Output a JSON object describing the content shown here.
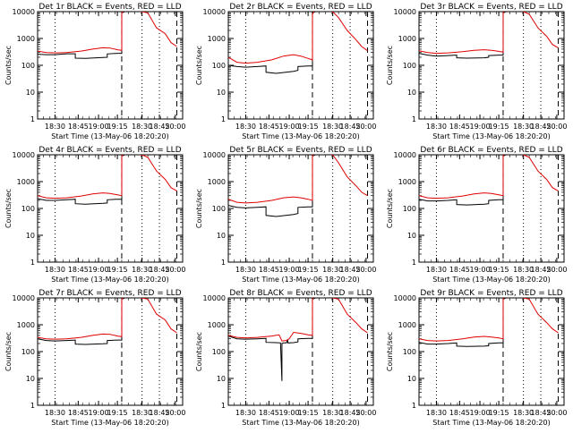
{
  "chart_data": [
    {
      "type": "line",
      "title": "Det 1r BLACK = Events, RED = LLD",
      "xlabel": "Start Time (13-May-06 18:20:20)",
      "ylabel": "Counts/sec",
      "ylim": [
        1,
        10000
      ],
      "yscale": "log",
      "x_ticks": [
        "18:30",
        "18:45",
        "19:00",
        "19:15",
        "18:30",
        "18:45",
        "20:00"
      ],
      "series": [
        {
          "name": "Events",
          "color": "#000000",
          "x": [
            0,
            0.06,
            0.12,
            0.2,
            0.26,
            0.26,
            0.33,
            0.45,
            0.48,
            0.48,
            0.55,
            0.58,
            0.58,
            0.6,
            0.62,
            0.62,
            0.63,
            0.63,
            0.65,
            0.7
          ],
          "y": [
            260,
            250,
            250,
            270,
            270,
            185,
            180,
            195,
            200,
            265,
            280,
            280,
            9000,
            10000,
            10000,
            null,
            null,
            null,
            null,
            null
          ]
        },
        {
          "name": "LLD",
          "color": "#e00000",
          "x": [
            0,
            0.06,
            0.12,
            0.2,
            0.3,
            0.38,
            0.45,
            0.5,
            0.55,
            0.58,
            0.58,
            0.6,
            0.64,
            0.68,
            0.72,
            0.76,
            0.82,
            0.88,
            0.92,
            0.96
          ],
          "y": [
            340,
            300,
            290,
            300,
            340,
            400,
            450,
            440,
            380,
            360,
            9000,
            12000,
            12000,
            11000,
            10000,
            9000,
            2500,
            1500,
            700,
            500
          ]
        }
      ]
    },
    {
      "type": "line",
      "title": "Det 2r BLACK = Events, RED = LLD",
      "xlabel": "Start Time (13-May-06 18:20:20)",
      "ylabel": "Counts/sec",
      "ylim": [
        1,
        10000
      ],
      "yscale": "log",
      "x_ticks": [
        "18:30",
        "18:45",
        "19:00",
        "19:15",
        "18:30",
        "18:45",
        "20:00"
      ],
      "series": [
        {
          "name": "Events",
          "color": "#000000",
          "x": [
            0,
            0.06,
            0.12,
            0.2,
            0.26,
            0.26,
            0.33,
            0.45,
            0.48,
            0.48,
            0.55,
            0.58,
            0.58,
            0.6,
            0.62
          ],
          "y": [
            100,
            90,
            85,
            90,
            95,
            55,
            50,
            60,
            65,
            90,
            95,
            95,
            9000,
            10000,
            10000
          ]
        },
        {
          "name": "LLD",
          "color": "#e00000",
          "x": [
            0,
            0.06,
            0.12,
            0.2,
            0.3,
            0.38,
            0.45,
            0.5,
            0.55,
            0.58,
            0.58,
            0.6,
            0.64,
            0.68,
            0.72,
            0.76,
            0.82,
            0.88,
            0.92,
            0.96
          ],
          "y": [
            200,
            130,
            120,
            130,
            160,
            220,
            250,
            220,
            180,
            160,
            8000,
            12000,
            12000,
            11000,
            10000,
            6000,
            2000,
            900,
            500,
            350
          ]
        }
      ]
    },
    {
      "type": "line",
      "title": "Det 3r BLACK = Events, RED = LLD",
      "xlabel": "Start Time (13-May-06 18:20:20)",
      "ylabel": "Counts/sec",
      "ylim": [
        1,
        10000
      ],
      "yscale": "log",
      "x_ticks": [
        "18:30",
        "18:45",
        "19:00",
        "19:15",
        "18:30",
        "18:45",
        "20:00"
      ],
      "series": [
        {
          "name": "Events",
          "color": "#000000",
          "x": [
            0,
            0.06,
            0.12,
            0.2,
            0.26,
            0.26,
            0.33,
            0.45,
            0.48,
            0.48,
            0.55,
            0.58,
            0.58,
            0.6,
            0.62
          ],
          "y": [
            280,
            240,
            220,
            230,
            240,
            190,
            185,
            190,
            200,
            230,
            240,
            240,
            9000,
            10000,
            10000
          ]
        },
        {
          "name": "LLD",
          "color": "#e00000",
          "x": [
            0,
            0.06,
            0.12,
            0.2,
            0.3,
            0.38,
            0.45,
            0.5,
            0.55,
            0.58,
            0.58,
            0.6,
            0.64,
            0.68,
            0.72,
            0.76,
            0.82,
            0.88,
            0.92,
            0.96
          ],
          "y": [
            350,
            300,
            280,
            290,
            320,
            360,
            380,
            360,
            330,
            310,
            9000,
            12000,
            12000,
            11000,
            10000,
            8000,
            2500,
            1200,
            600,
            450
          ]
        }
      ]
    },
    {
      "type": "line",
      "title": "Det 4r BLACK = Events, RED = LLD",
      "xlabel": "Start Time (13-May-06 18:20:20)",
      "ylabel": "Counts/sec",
      "ylim": [
        1,
        10000
      ],
      "yscale": "log",
      "x_ticks": [
        "18:30",
        "18:45",
        "19:00",
        "19:15",
        "18:30",
        "18:45",
        "20:00"
      ],
      "series": [
        {
          "name": "Events",
          "color": "#000000",
          "x": [
            0,
            0.06,
            0.12,
            0.2,
            0.26,
            0.26,
            0.33,
            0.45,
            0.48,
            0.48,
            0.55,
            0.58,
            0.58,
            0.6,
            0.62
          ],
          "y": [
            230,
            200,
            200,
            210,
            220,
            150,
            145,
            155,
            160,
            210,
            220,
            220,
            9000,
            10000,
            10000
          ]
        },
        {
          "name": "LLD",
          "color": "#e00000",
          "x": [
            0,
            0.06,
            0.12,
            0.2,
            0.3,
            0.38,
            0.45,
            0.5,
            0.55,
            0.58,
            0.58,
            0.6,
            0.64,
            0.68,
            0.72,
            0.76,
            0.82,
            0.88,
            0.92,
            0.96
          ],
          "y": [
            300,
            250,
            240,
            250,
            290,
            350,
            380,
            360,
            320,
            300,
            9000,
            12000,
            12000,
            11000,
            10000,
            8000,
            2500,
            1200,
            600,
            450
          ]
        }
      ]
    },
    {
      "type": "line",
      "title": "Det 5r BLACK = Events, RED = LLD",
      "xlabel": "Start Time (13-May-06 18:20:20)",
      "ylabel": "Counts/sec",
      "ylim": [
        1,
        10000
      ],
      "yscale": "log",
      "x_ticks": [
        "18:30",
        "18:45",
        "19:00",
        "19:15",
        "18:30",
        "18:45",
        "20:00"
      ],
      "series": [
        {
          "name": "Events",
          "color": "#000000",
          "x": [
            0,
            0.06,
            0.12,
            0.2,
            0.26,
            0.26,
            0.33,
            0.45,
            0.48,
            0.48,
            0.55,
            0.58,
            0.58,
            0.6,
            0.62
          ],
          "y": [
            130,
            110,
            105,
            110,
            115,
            55,
            50,
            60,
            65,
            110,
            115,
            115,
            9000,
            10000,
            10000
          ]
        },
        {
          "name": "LLD",
          "color": "#e00000",
          "x": [
            0,
            0.06,
            0.12,
            0.2,
            0.3,
            0.38,
            0.45,
            0.5,
            0.55,
            0.58,
            0.58,
            0.6,
            0.64,
            0.68,
            0.72,
            0.76,
            0.82,
            0.88,
            0.92,
            0.96
          ],
          "y": [
            220,
            170,
            160,
            170,
            200,
            250,
            270,
            250,
            220,
            200,
            9000,
            12000,
            12000,
            11000,
            10000,
            5000,
            1500,
            700,
            400,
            300
          ]
        }
      ]
    },
    {
      "type": "line",
      "title": "Det 6r BLACK = Events, RED = LLD",
      "xlabel": "Start Time (13-May-06 18:20:20)",
      "ylabel": "Counts/sec",
      "ylim": [
        1,
        10000
      ],
      "yscale": "log",
      "x_ticks": [
        "18:30",
        "18:45",
        "19:00",
        "19:15",
        "18:30",
        "18:45",
        "20:00"
      ],
      "series": [
        {
          "name": "Events",
          "color": "#000000",
          "x": [
            0,
            0.06,
            0.12,
            0.2,
            0.26,
            0.26,
            0.33,
            0.45,
            0.48,
            0.48,
            0.55,
            0.58,
            0.58,
            0.6,
            0.62
          ],
          "y": [
            220,
            190,
            190,
            200,
            210,
            140,
            135,
            145,
            150,
            200,
            210,
            210,
            9000,
            10000,
            10000
          ]
        },
        {
          "name": "LLD",
          "color": "#e00000",
          "x": [
            0,
            0.06,
            0.12,
            0.2,
            0.3,
            0.38,
            0.45,
            0.5,
            0.55,
            0.58,
            0.58,
            0.6,
            0.64,
            0.68,
            0.72,
            0.76,
            0.82,
            0.88,
            0.92,
            0.96
          ],
          "y": [
            300,
            250,
            240,
            250,
            290,
            350,
            380,
            360,
            320,
            300,
            9000,
            12000,
            12000,
            11000,
            10000,
            8000,
            2500,
            1200,
            600,
            450
          ]
        }
      ]
    },
    {
      "type": "line",
      "title": "Det 7r BLACK = Events, RED = LLD",
      "xlabel": "Start Time (13-May-06 18:20:20)",
      "ylabel": "Counts/sec",
      "ylim": [
        1,
        10000
      ],
      "yscale": "log",
      "x_ticks": [
        "18:30",
        "18:45",
        "19:00",
        "19:15",
        "18:30",
        "18:45",
        "20:00"
      ],
      "series": [
        {
          "name": "Events",
          "color": "#000000",
          "x": [
            0,
            0.06,
            0.12,
            0.2,
            0.26,
            0.26,
            0.33,
            0.45,
            0.48,
            0.48,
            0.55,
            0.58,
            0.58,
            0.6,
            0.62
          ],
          "y": [
            300,
            260,
            250,
            260,
            270,
            190,
            185,
            195,
            200,
            260,
            270,
            270,
            9000,
            10000,
            10000
          ]
        },
        {
          "name": "LLD",
          "color": "#e00000",
          "x": [
            0,
            0.06,
            0.12,
            0.2,
            0.3,
            0.38,
            0.45,
            0.5,
            0.55,
            0.58,
            0.58,
            0.6,
            0.64,
            0.68,
            0.72,
            0.76,
            0.82,
            0.88,
            0.92,
            0.96
          ],
          "y": [
            340,
            300,
            290,
            300,
            340,
            400,
            450,
            440,
            380,
            360,
            9000,
            12000,
            12000,
            11000,
            10000,
            9000,
            2500,
            1500,
            700,
            500
          ]
        }
      ]
    },
    {
      "type": "line",
      "title": "Det 8r BLACK = Events, RED = LLD",
      "xlabel": "Start Time (13-May-06 18:20:20)",
      "ylabel": "Counts/sec",
      "ylim": [
        1,
        10000
      ],
      "yscale": "log",
      "x_ticks": [
        "18:30",
        "18:45",
        "19:00",
        "19:15",
        "18:30",
        "18:45",
        "20:00"
      ],
      "series": [
        {
          "name": "Events",
          "color": "#000000",
          "x": [
            0,
            0.06,
            0.12,
            0.2,
            0.26,
            0.26,
            0.33,
            0.36,
            0.37,
            0.37,
            0.38,
            0.4,
            0.41,
            0.41,
            0.45,
            0.48,
            0.48,
            0.55,
            0.58,
            0.58,
            0.6,
            0.62
          ],
          "y": [
            380,
            300,
            290,
            300,
            310,
            220,
            215,
            210,
            8,
            200,
            210,
            210,
            280,
            210,
            215,
            230,
            300,
            310,
            310,
            9000,
            10000,
            10000
          ]
        },
        {
          "name": "LLD",
          "color": "#e00000",
          "x": [
            0,
            0.06,
            0.12,
            0.2,
            0.3,
            0.35,
            0.37,
            0.4,
            0.42,
            0.45,
            0.5,
            0.55,
            0.58,
            0.58,
            0.6,
            0.64,
            0.68,
            0.72,
            0.76,
            0.82,
            0.88,
            0.92,
            0.96
          ],
          "y": [
            400,
            340,
            320,
            340,
            380,
            420,
            250,
            260,
            300,
            520,
            480,
            420,
            400,
            9000,
            12000,
            12000,
            11000,
            10000,
            9000,
            2500,
            1200,
            700,
            500
          ]
        }
      ]
    },
    {
      "type": "line",
      "title": "Det 9r BLACK = Events, RED = LLD",
      "xlabel": "Start Time (13-May-06 18:20:20)",
      "ylabel": "Counts/sec",
      "ylim": [
        1,
        10000
      ],
      "yscale": "log",
      "x_ticks": [
        "18:30",
        "18:45",
        "19:00",
        "19:15",
        "18:30",
        "18:45",
        "20:00"
      ],
      "series": [
        {
          "name": "Events",
          "color": "#000000",
          "x": [
            0,
            0.06,
            0.12,
            0.2,
            0.26,
            0.26,
            0.33,
            0.45,
            0.48,
            0.48,
            0.55,
            0.58,
            0.58,
            0.6,
            0.62
          ],
          "y": [
            220,
            190,
            190,
            200,
            210,
            160,
            155,
            160,
            165,
            200,
            210,
            210,
            9000,
            10000,
            10000
          ]
        },
        {
          "name": "LLD",
          "color": "#e00000",
          "x": [
            0,
            0.06,
            0.12,
            0.2,
            0.3,
            0.38,
            0.45,
            0.5,
            0.55,
            0.58,
            0.58,
            0.6,
            0.64,
            0.68,
            0.72,
            0.76,
            0.82,
            0.88,
            0.92,
            0.96
          ],
          "y": [
            300,
            260,
            250,
            260,
            300,
            350,
            370,
            350,
            320,
            300,
            9000,
            12000,
            12000,
            11000,
            10000,
            9000,
            2500,
            1200,
            700,
            500
          ]
        }
      ]
    }
  ],
  "y_tick_labels": [
    "1",
    "10",
    "100",
    "1000",
    "10000"
  ],
  "vlines": {
    "dotted": [
      0.12,
      0.72,
      0.84
    ],
    "dashed": [
      0.58,
      0.96
    ]
  }
}
